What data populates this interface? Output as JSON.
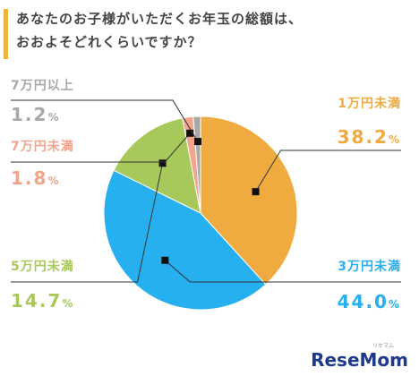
{
  "title_lines": [
    "あなたのお子様がいただくお年玉の総額は、",
    "おおよそどれくらいですか？"
  ],
  "logo": "ReseMom",
  "logo_sub": "リセマム",
  "chart_data": {
    "type": "pie",
    "slices": [
      {
        "label": "1万円未満",
        "value": 38.2,
        "display": "38.2",
        "color": "#efab3f"
      },
      {
        "label": "3万円未満",
        "value": 44.0,
        "display": "44.0",
        "color": "#26b0ef"
      },
      {
        "label": "5万円未満",
        "value": 14.7,
        "display": "14.7",
        "color": "#a7c85a"
      },
      {
        "label": "7万円未満",
        "value": 1.8,
        "display": "1.8",
        "color": "#f2a48c"
      },
      {
        "label": "7万円以上",
        "value": 1.2,
        "display": "1.2",
        "color": "#a8a8a8"
      }
    ],
    "unit": "%"
  }
}
